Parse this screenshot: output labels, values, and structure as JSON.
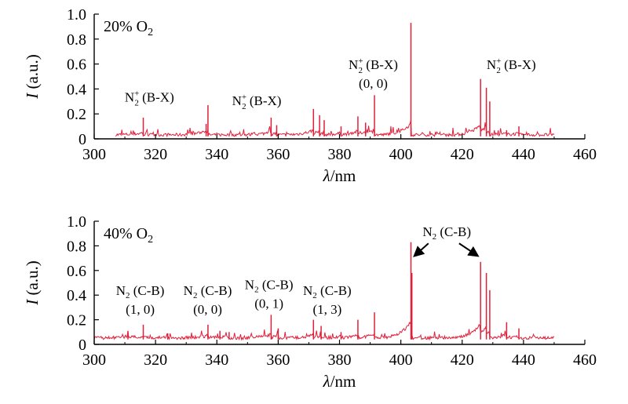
{
  "chart_data": [
    {
      "type": "line",
      "panel_label": "20% O",
      "panel_label_sub": "2",
      "xlabel_symbol": "λ",
      "xlabel_unit": "/nm",
      "ylabel_symbol": "I",
      "ylabel_unit": " (a.u.)",
      "xlim": [
        300,
        460
      ],
      "ylim": [
        0,
        1.0
      ],
      "xticks": [
        300,
        320,
        340,
        360,
        380,
        400,
        420,
        440,
        460
      ],
      "yticks": [
        0,
        0.2,
        0.4,
        0.6,
        0.8,
        1.0
      ],
      "ytick_labels": [
        "0",
        "0.2",
        "0.4",
        "0.6",
        "0.8",
        "1.0"
      ],
      "color": "#e0203a",
      "x_range": [
        307,
        450
      ],
      "baseline": 0.02,
      "peaks": [
        {
          "x": 316,
          "y": 0.17
        },
        {
          "x": 337.1,
          "y": 0.27
        },
        {
          "x": 336.5,
          "y": 0.12
        },
        {
          "x": 357.7,
          "y": 0.17
        },
        {
          "x": 359.5,
          "y": 0.11
        },
        {
          "x": 371.5,
          "y": 0.24
        },
        {
          "x": 373.5,
          "y": 0.19
        },
        {
          "x": 375,
          "y": 0.15
        },
        {
          "x": 380.5,
          "y": 0.1
        },
        {
          "x": 386,
          "y": 0.18
        },
        {
          "x": 388.5,
          "y": 0.13
        },
        {
          "x": 391.4,
          "y": 0.35
        },
        {
          "x": 403.3,
          "y": 0.93
        },
        {
          "x": 426,
          "y": 0.48
        },
        {
          "x": 427.9,
          "y": 0.41
        },
        {
          "x": 429,
          "y": 0.3
        },
        {
          "x": 434.5,
          "y": 0.07
        },
        {
          "x": 438.5,
          "y": 0.1
        }
      ],
      "annotations": [
        {
          "main": "N",
          "sub": "2",
          "sup": "+",
          "rest": " (B-X)",
          "line2": "",
          "x": 318,
          "y": 0.3
        },
        {
          "main": "N",
          "sub": "2",
          "sup": "+",
          "rest": " (B-X)",
          "line2": "",
          "x": 353,
          "y": 0.27
        },
        {
          "main": "N",
          "sub": "2",
          "sup": "+",
          "rest": " (B-X)",
          "line2": "(0, 0)",
          "x": 391,
          "y": 0.56
        },
        {
          "main": "N",
          "sub": "2",
          "sup": "+",
          "rest": " (B-X)",
          "line2": "",
          "x": 436,
          "y": 0.56
        }
      ],
      "arrows": []
    },
    {
      "type": "line",
      "panel_label": "40% O",
      "panel_label_sub": "2",
      "xlabel_symbol": "λ",
      "xlabel_unit": "/nm",
      "ylabel_symbol": "I",
      "ylabel_unit": " (a.u.)",
      "xlim": [
        300,
        460
      ],
      "ylim": [
        0,
        1.0
      ],
      "xticks": [
        300,
        320,
        340,
        360,
        380,
        400,
        420,
        440,
        460
      ],
      "yticks": [
        0,
        0.2,
        0.4,
        0.6,
        0.8,
        1.0
      ],
      "ytick_labels": [
        "0",
        "0.2",
        "0.4",
        "0.6",
        "0.8",
        "1.0"
      ],
      "color": "#e0203a",
      "x_range": [
        300,
        450
      ],
      "baseline": 0.04,
      "peaks": [
        {
          "x": 311,
          "y": 0.11
        },
        {
          "x": 316,
          "y": 0.16
        },
        {
          "x": 324,
          "y": 0.09
        },
        {
          "x": 337.1,
          "y": 0.16
        },
        {
          "x": 341,
          "y": 0.11
        },
        {
          "x": 344,
          "y": 0.1
        },
        {
          "x": 357.7,
          "y": 0.24
        },
        {
          "x": 360,
          "y": 0.13
        },
        {
          "x": 371.5,
          "y": 0.2
        },
        {
          "x": 374,
          "y": 0.15
        },
        {
          "x": 380.5,
          "y": 0.1
        },
        {
          "x": 386,
          "y": 0.2
        },
        {
          "x": 391.4,
          "y": 0.26
        },
        {
          "x": 403.3,
          "y": 0.83
        },
        {
          "x": 403.6,
          "y": 0.58
        },
        {
          "x": 426,
          "y": 0.67
        },
        {
          "x": 427.9,
          "y": 0.58
        },
        {
          "x": 429,
          "y": 0.44
        },
        {
          "x": 434.5,
          "y": 0.18
        },
        {
          "x": 438.5,
          "y": 0.13
        }
      ],
      "annotations": [
        {
          "main": "N",
          "sub": "2",
          "sup": "",
          "rest": " (C-B)",
          "line2": "(1, 0)",
          "x": 315,
          "y": 0.4
        },
        {
          "main": "N",
          "sub": "2",
          "sup": "",
          "rest": " (C-B)",
          "line2": "(0, 0)",
          "x": 337,
          "y": 0.4
        },
        {
          "main": "N",
          "sub": "2",
          "sup": "",
          "rest": " (C-B)",
          "line2": "(0, 1)",
          "x": 357,
          "y": 0.45
        },
        {
          "main": "N",
          "sub": "2",
          "sup": "",
          "rest": " (C-B)",
          "line2": "(1, 3)",
          "x": 376,
          "y": 0.4
        },
        {
          "main": "N",
          "sub": "2",
          "sup": "",
          "rest": " (C-B)",
          "line2": "",
          "x": 415,
          "y": 0.88
        }
      ],
      "arrows": [
        {
          "from": [
            409,
            0.82
          ],
          "to": [
            404.5,
            0.72
          ]
        },
        {
          "from": [
            419,
            0.82
          ],
          "to": [
            425,
            0.72
          ]
        }
      ]
    }
  ]
}
